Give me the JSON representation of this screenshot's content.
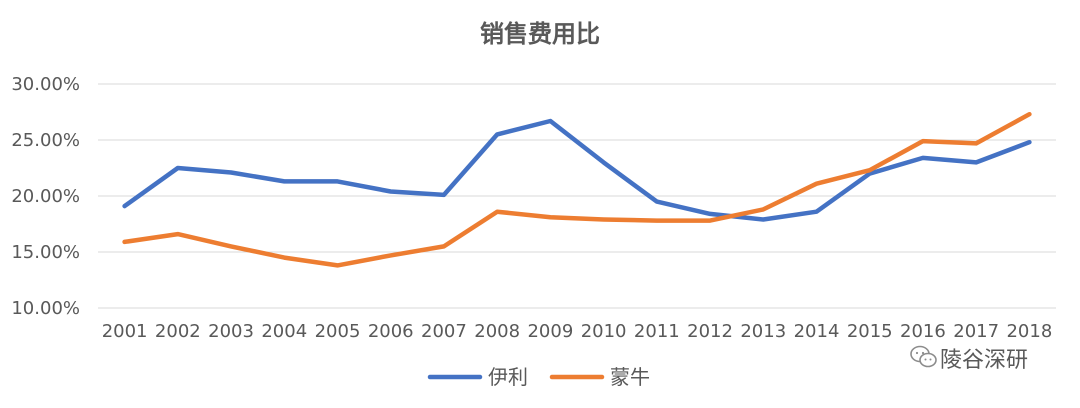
{
  "chart_data": {
    "type": "line",
    "title": "销售费用比",
    "xlabel": "",
    "ylabel": "",
    "categories": [
      "2001",
      "2002",
      "2003",
      "2004",
      "2005",
      "2006",
      "2007",
      "2008",
      "2009",
      "2010",
      "2011",
      "2012",
      "2013",
      "2014",
      "2015",
      "2016",
      "2017",
      "2018"
    ],
    "yticks": [
      "10.00%",
      "15.00%",
      "20.00%",
      "25.00%",
      "30.00%"
    ],
    "ylim": [
      10,
      30
    ],
    "grid": true,
    "legend_position": "bottom",
    "series": [
      {
        "name": "伊利",
        "color": "#4472C4",
        "values": [
          19.1,
          22.5,
          22.1,
          21.3,
          21.3,
          20.4,
          20.1,
          25.5,
          26.7,
          23.0,
          19.5,
          18.4,
          17.9,
          18.6,
          22.0,
          23.4,
          23.0,
          24.8
        ]
      },
      {
        "name": "蒙牛",
        "color": "#ED7D31",
        "values": [
          15.9,
          16.6,
          15.5,
          14.5,
          13.8,
          14.7,
          15.5,
          18.6,
          18.1,
          17.9,
          17.8,
          17.8,
          18.8,
          21.1,
          22.3,
          24.9,
          24.7,
          27.3
        ]
      }
    ]
  },
  "watermark": {
    "text": "陵谷深研",
    "icon": "wechat-icon"
  }
}
